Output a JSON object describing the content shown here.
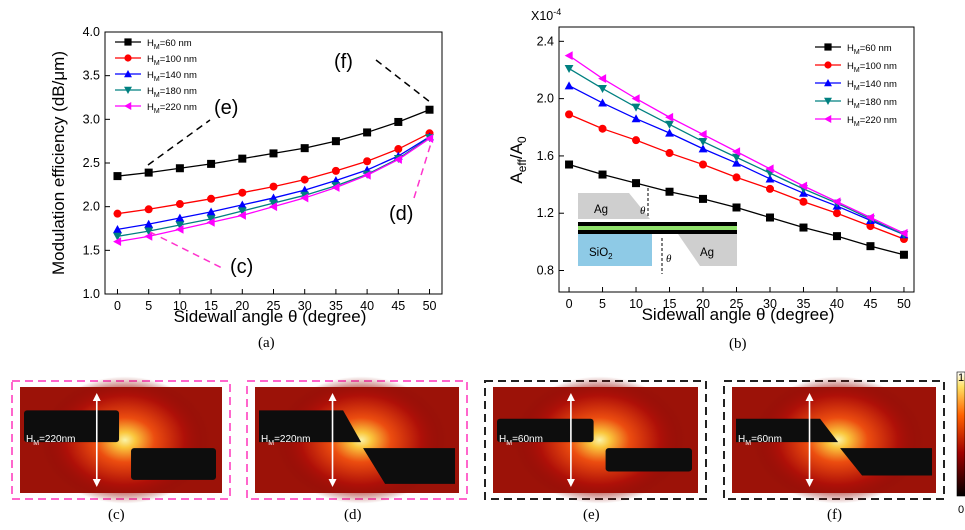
{
  "figure": {
    "caption_a": "(a)",
    "caption_b": "(b)",
    "caption_c": "(c)",
    "caption_d": "(d)",
    "caption_e": "(e)",
    "caption_f": "(f)",
    "colorbar_top": "1",
    "colorbar_bottom": "0"
  },
  "chart_data": [
    {
      "type": "line",
      "id": "a",
      "xlabel": "Sidewall angle θ (degree)",
      "ylabel": "Modulation efficiency (dB/μm)",
      "x": [
        0,
        5,
        10,
        15,
        20,
        25,
        30,
        35,
        40,
        45,
        50
      ],
      "xlim": [
        -2,
        52
      ],
      "ylim": [
        1.0,
        4.0
      ],
      "xticks": [
        "0",
        "5",
        "10",
        "15",
        "20",
        "25",
        "30",
        "35",
        "40",
        "45",
        "50"
      ],
      "yticks": [
        "1.0",
        "1.5",
        "2.0",
        "2.5",
        "3.0",
        "3.5",
        "4.0"
      ],
      "legend_position": "top-left",
      "series": [
        {
          "name": "H_M=60 nm",
          "color": "#000000",
          "marker": "square",
          "values": [
            2.35,
            2.39,
            2.44,
            2.49,
            2.55,
            2.61,
            2.67,
            2.75,
            2.85,
            2.97,
            3.11
          ]
        },
        {
          "name": "H_M=100 nm",
          "color": "#ff0000",
          "marker": "circle",
          "values": [
            1.92,
            1.97,
            2.03,
            2.09,
            2.16,
            2.23,
            2.31,
            2.41,
            2.52,
            2.66,
            2.84
          ]
        },
        {
          "name": "H_M=140 nm",
          "color": "#0000ff",
          "marker": "triangle-up",
          "values": [
            1.74,
            1.8,
            1.87,
            1.94,
            2.02,
            2.1,
            2.19,
            2.3,
            2.42,
            2.58,
            2.8
          ]
        },
        {
          "name": "H_M=180 nm",
          "color": "#008080",
          "marker": "triangle-down",
          "values": [
            1.66,
            1.72,
            1.79,
            1.86,
            1.95,
            2.04,
            2.13,
            2.24,
            2.37,
            2.55,
            2.79
          ]
        },
        {
          "name": "H_M=220 nm",
          "color": "#ff00ff",
          "marker": "triangle-left",
          "values": [
            1.6,
            1.66,
            1.74,
            1.82,
            1.9,
            2.0,
            2.1,
            2.22,
            2.36,
            2.54,
            2.78
          ]
        }
      ],
      "annotations": [
        "(e)",
        "(f)",
        "(d)",
        "(c)"
      ]
    },
    {
      "type": "line",
      "id": "b",
      "xlabel": "Sidewall angle θ (degree)",
      "ylabel": "A_eff/A_0",
      "multiplier": "X10^-4",
      "x": [
        0,
        5,
        10,
        15,
        20,
        25,
        30,
        35,
        40,
        45,
        50
      ],
      "xlim": [
        -1.5,
        51.5
      ],
      "ylim": [
        0.65,
        2.5
      ],
      "xticks": [
        "0",
        "5",
        "10",
        "15",
        "20",
        "25",
        "30",
        "35",
        "40",
        "45",
        "50"
      ],
      "yticks": [
        "0.8",
        "1.2",
        "1.6",
        "2.0",
        "2.4"
      ],
      "legend_position": "top-right",
      "series": [
        {
          "name": "H_M=60 nm",
          "color": "#000000",
          "marker": "square",
          "values": [
            1.54,
            1.47,
            1.41,
            1.35,
            1.3,
            1.24,
            1.17,
            1.1,
            1.04,
            0.97,
            0.91
          ]
        },
        {
          "name": "H_M=100 nm",
          "color": "#ff0000",
          "marker": "circle",
          "values": [
            1.89,
            1.79,
            1.71,
            1.62,
            1.54,
            1.45,
            1.37,
            1.28,
            1.2,
            1.11,
            1.02
          ]
        },
        {
          "name": "H_M=140 nm",
          "color": "#0000ff",
          "marker": "triangle-up",
          "values": [
            2.09,
            1.97,
            1.86,
            1.76,
            1.65,
            1.55,
            1.44,
            1.34,
            1.25,
            1.15,
            1.05
          ]
        },
        {
          "name": "H_M=180 nm",
          "color": "#008080",
          "marker": "triangle-down",
          "values": [
            2.21,
            2.07,
            1.94,
            1.82,
            1.7,
            1.59,
            1.48,
            1.37,
            1.27,
            1.16,
            1.05
          ]
        },
        {
          "name": "H_M=220 nm",
          "color": "#ff00ff",
          "marker": "triangle-left",
          "values": [
            2.3,
            2.14,
            2.0,
            1.87,
            1.75,
            1.63,
            1.51,
            1.39,
            1.28,
            1.17,
            1.06
          ]
        }
      ],
      "inset": {
        "ag_top": "Ag",
        "ag_bottom": "Ag",
        "sio2": "SiO2",
        "theta": "θ"
      }
    }
  ],
  "field_maps": [
    {
      "id": "c",
      "label": "H_M=220nm",
      "frame_color": "#ff66cc",
      "slant": false
    },
    {
      "id": "d",
      "label": "H_M=220nm",
      "frame_color": "#ff66cc",
      "slant": true
    },
    {
      "id": "e",
      "label": "H_M=60nm",
      "frame_color": "#222222",
      "slant": false
    },
    {
      "id": "f",
      "label": "H_M=60nm",
      "frame_color": "#222222",
      "slant": true
    }
  ]
}
